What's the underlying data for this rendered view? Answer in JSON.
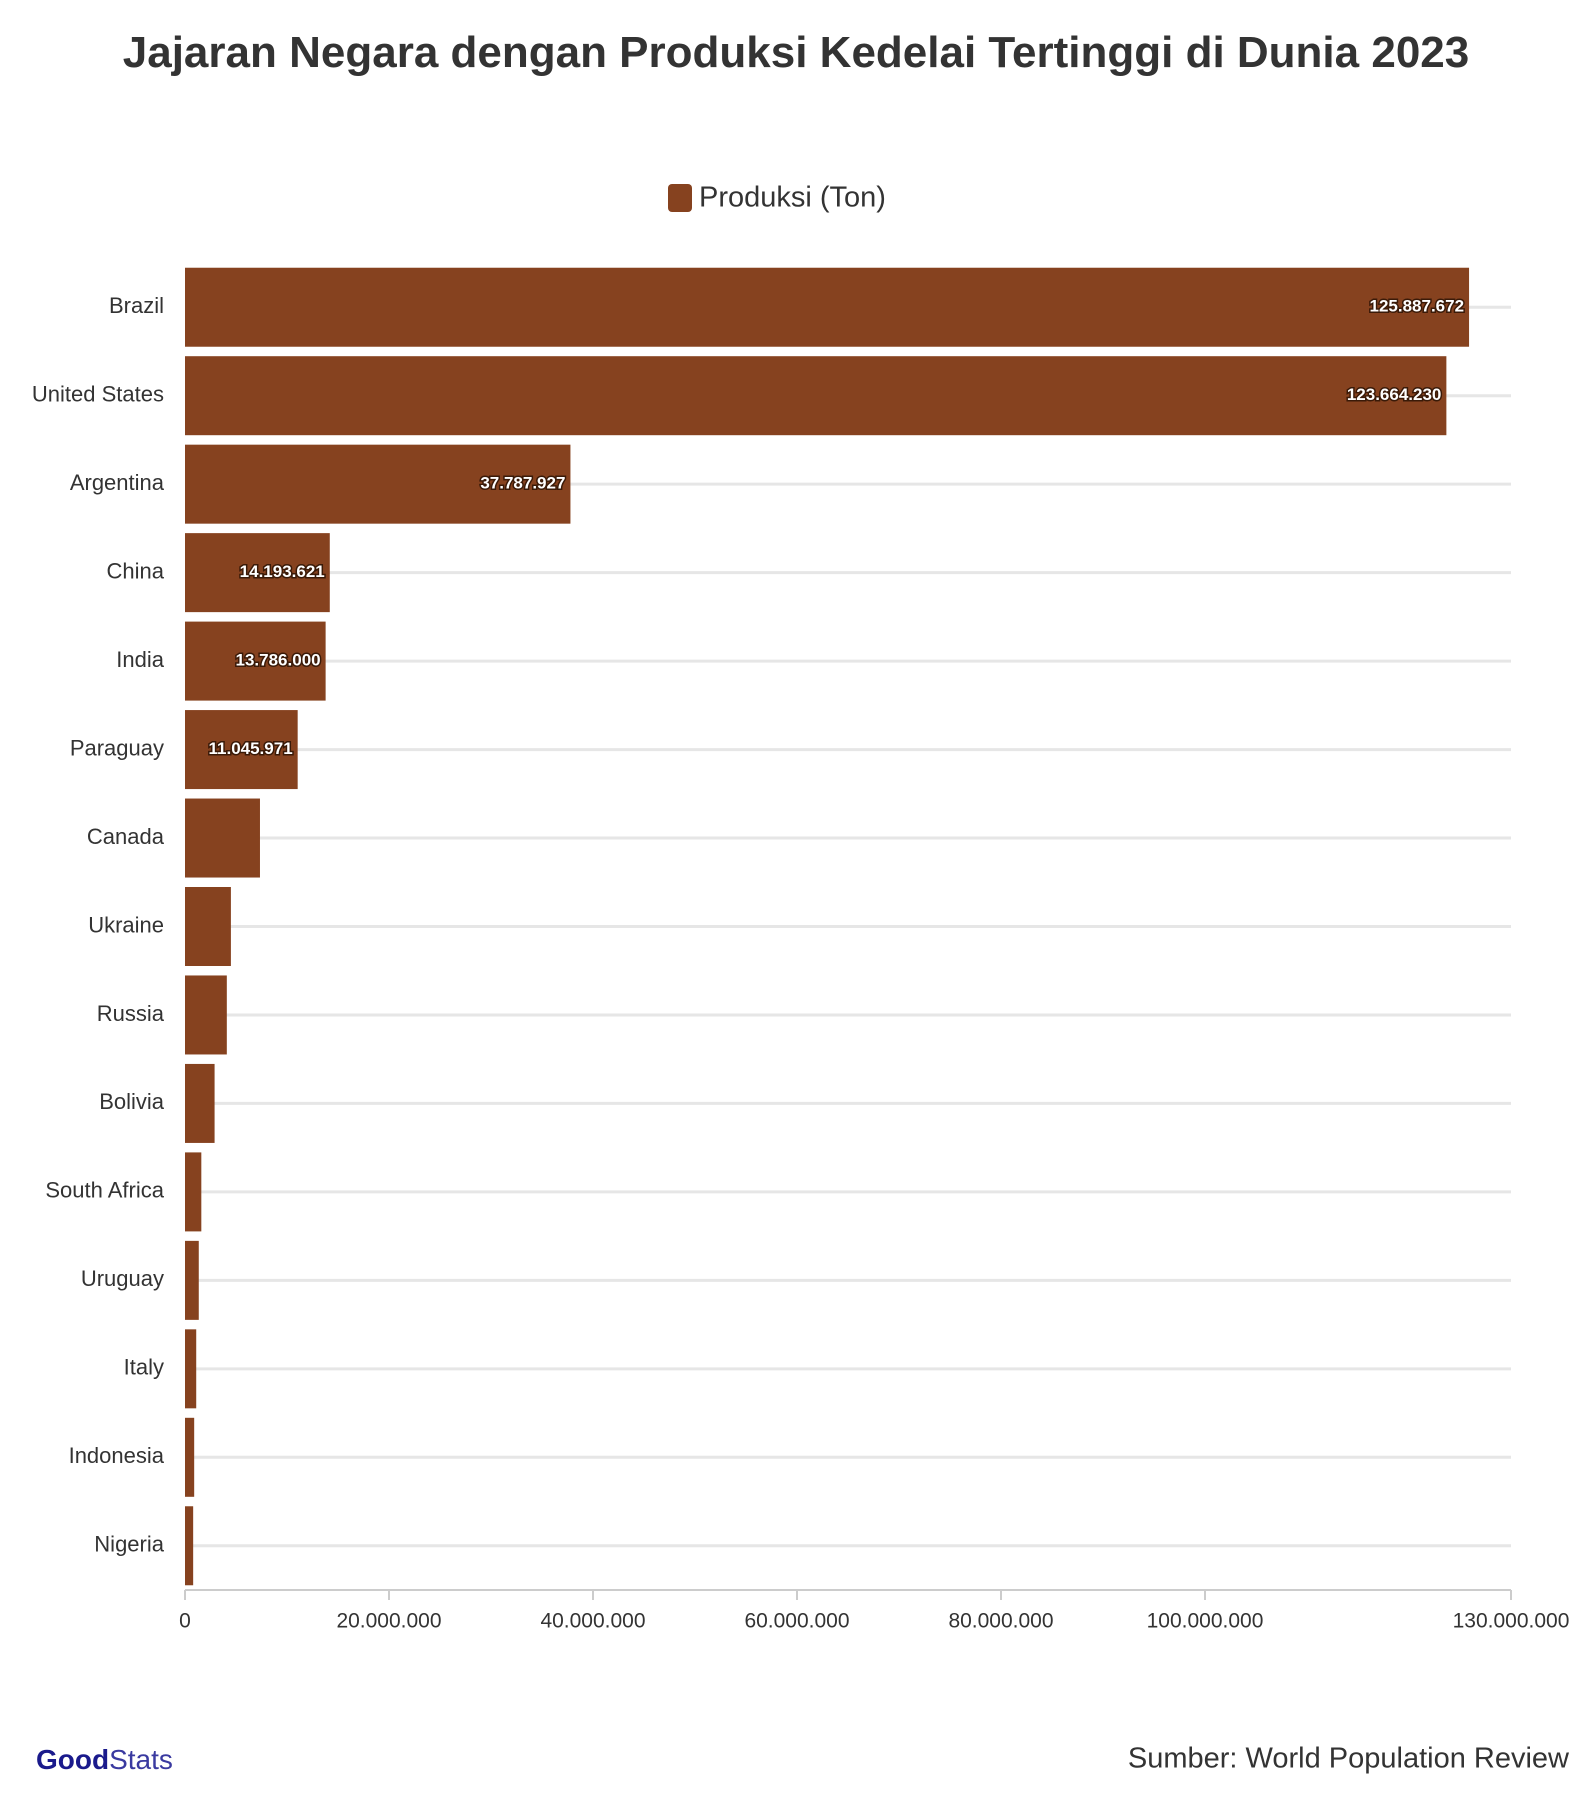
{
  "chart_data": {
    "type": "barh",
    "title": "Jajaran Negara dengan Produksi Kedelai Tertinggi di Dunia 2023",
    "categories": [
      "Brazil",
      "United States",
      "Argentina",
      "China",
      "India",
      "Paraguay",
      "Canada",
      "Ukraine",
      "Russia",
      "Bolivia",
      "South Africa",
      "Uruguay",
      "Italy",
      "Indonesia",
      "Nigeria"
    ],
    "series": [
      {
        "name": "Produksi (Ton)",
        "color": "#86421f",
        "values": [
          125887672,
          123664230,
          37787927,
          14193621,
          13786000,
          11045971,
          7350000,
          4500000,
          4100000,
          2900000,
          1600000,
          1350000,
          1100000,
          900000,
          800000
        ],
        "value_labels": [
          "125.887.672",
          "123.664.230",
          "37.787.927",
          "14.193.621",
          "13.786.000",
          "11.045.971",
          null,
          null,
          null,
          null,
          null,
          null,
          null,
          null,
          null
        ]
      }
    ],
    "xlim": [
      0,
      130000000
    ],
    "xticks": [
      0,
      {
        "value": 20000000,
        "label": "20.000.000"
      },
      {
        "value": 40000000,
        "label": "40.000.000"
      },
      {
        "value": 60000000,
        "label": "60.000.000"
      },
      {
        "value": 80000000,
        "label": "80.000.000"
      },
      {
        "value": 100000000,
        "label": "100.000.000"
      },
      {
        "value": 130000000,
        "label": "130.000.000"
      }
    ],
    "grid": true,
    "legend": "top",
    "source": "Sumber: World Population Review",
    "logo": {
      "bold": "Good",
      "light": "Stats"
    }
  }
}
